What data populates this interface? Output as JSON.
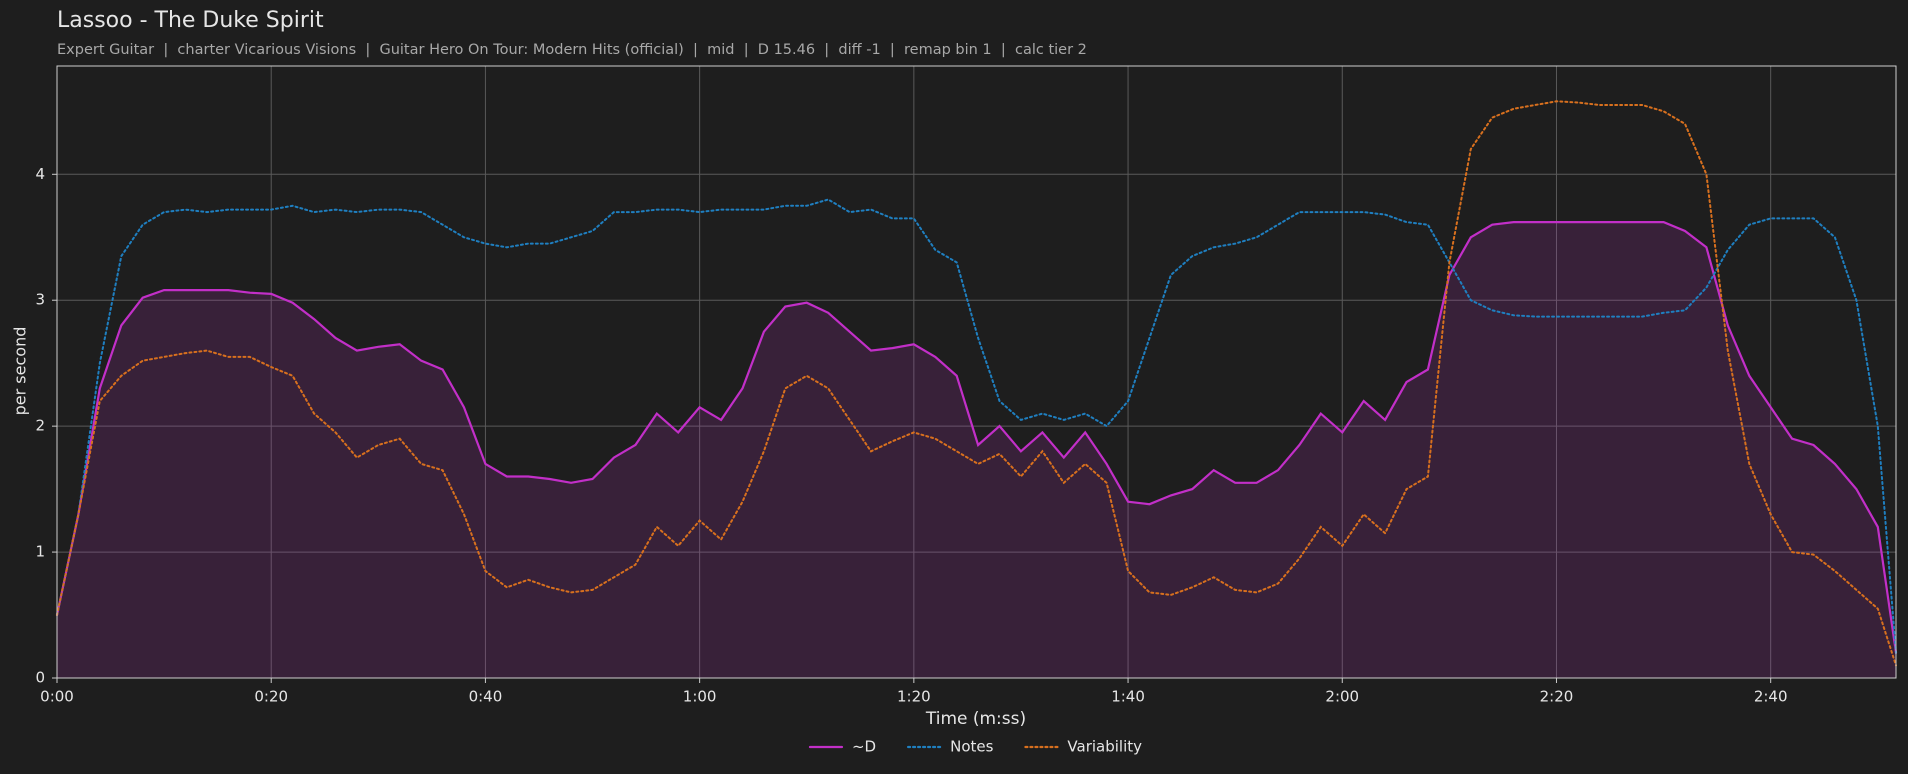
{
  "chart_data": {
    "type": "line",
    "title": "Lassoo - The Duke Spirit",
    "subtitle": "Expert Guitar  |  charter Vicarious Visions  |  Guitar Hero On Tour: Modern Hits (official)  |  mid  |  D 15.46  |  diff -1  |  remap bin 1  |  calc tier 2",
    "xlabel": "Time (m:ss)",
    "ylabel": "per second",
    "x": [
      0,
      2,
      4,
      6,
      8,
      10,
      12,
      14,
      16,
      18,
      20,
      22,
      24,
      26,
      28,
      30,
      32,
      34,
      36,
      38,
      40,
      42,
      44,
      46,
      48,
      50,
      52,
      54,
      56,
      58,
      60,
      62,
      64,
      66,
      68,
      70,
      72,
      74,
      76,
      78,
      80,
      82,
      84,
      86,
      88,
      90,
      92,
      94,
      96,
      98,
      100,
      102,
      104,
      106,
      108,
      110,
      112,
      114,
      116,
      118,
      120,
      122,
      124,
      126,
      128,
      130,
      132,
      134,
      136,
      138,
      140,
      142,
      144,
      146,
      148,
      150,
      152,
      154,
      156,
      158,
      160,
      162,
      164,
      166,
      168,
      170,
      171.7
    ],
    "series": [
      {
        "name": "~D",
        "color": "#c22fc8",
        "style": "solid",
        "fill": true,
        "values": [
          0.5,
          1.3,
          2.3,
          2.8,
          3.02,
          3.08,
          3.08,
          3.08,
          3.08,
          3.06,
          3.05,
          2.98,
          2.85,
          2.7,
          2.6,
          2.63,
          2.65,
          2.52,
          2.45,
          2.15,
          1.7,
          1.6,
          1.6,
          1.58,
          1.55,
          1.58,
          1.75,
          1.85,
          2.1,
          1.95,
          2.15,
          2.05,
          2.3,
          2.75,
          2.95,
          2.98,
          2.9,
          2.75,
          2.6,
          2.62,
          2.65,
          2.55,
          2.4,
          1.85,
          2.0,
          1.8,
          1.95,
          1.75,
          1.95,
          1.7,
          1.4,
          1.38,
          1.45,
          1.5,
          1.65,
          1.55,
          1.55,
          1.65,
          1.85,
          2.1,
          1.95,
          2.2,
          2.05,
          2.35,
          2.45,
          3.2,
          3.5,
          3.6,
          3.62,
          3.62,
          3.62,
          3.62,
          3.62,
          3.62,
          3.62,
          3.62,
          3.55,
          3.42,
          2.8,
          2.4,
          2.15,
          1.9,
          1.85,
          1.7,
          1.5,
          1.2,
          0.2
        ]
      },
      {
        "name": "Notes",
        "color": "#1f7fc0",
        "style": "dotted",
        "fill": false,
        "values": [
          0.5,
          1.3,
          2.5,
          3.35,
          3.6,
          3.7,
          3.72,
          3.7,
          3.72,
          3.72,
          3.72,
          3.75,
          3.7,
          3.72,
          3.7,
          3.72,
          3.72,
          3.7,
          3.6,
          3.5,
          3.45,
          3.42,
          3.45,
          3.45,
          3.5,
          3.55,
          3.7,
          3.7,
          3.72,
          3.72,
          3.7,
          3.72,
          3.72,
          3.72,
          3.75,
          3.75,
          3.8,
          3.7,
          3.72,
          3.65,
          3.65,
          3.4,
          3.3,
          2.7,
          2.2,
          2.05,
          2.1,
          2.05,
          2.1,
          2.0,
          2.2,
          2.7,
          3.2,
          3.35,
          3.42,
          3.45,
          3.5,
          3.6,
          3.7,
          3.7,
          3.7,
          3.7,
          3.68,
          3.62,
          3.6,
          3.3,
          3.0,
          2.92,
          2.88,
          2.87,
          2.87,
          2.87,
          2.87,
          2.87,
          2.87,
          2.9,
          2.92,
          3.1,
          3.4,
          3.6,
          3.65,
          3.65,
          3.65,
          3.5,
          3.0,
          2.0,
          0.2
        ]
      },
      {
        "name": "Variability",
        "color": "#d8701e",
        "style": "dotted",
        "fill": false,
        "values": [
          0.5,
          1.3,
          2.2,
          2.4,
          2.52,
          2.55,
          2.58,
          2.6,
          2.55,
          2.55,
          2.47,
          2.4,
          2.1,
          1.95,
          1.75,
          1.85,
          1.9,
          1.7,
          1.65,
          1.3,
          0.85,
          0.72,
          0.78,
          0.72,
          0.68,
          0.7,
          0.8,
          0.9,
          1.2,
          1.05,
          1.25,
          1.1,
          1.4,
          1.8,
          2.3,
          2.4,
          2.3,
          2.05,
          1.8,
          1.88,
          1.95,
          1.9,
          1.8,
          1.7,
          1.78,
          1.6,
          1.8,
          1.55,
          1.7,
          1.55,
          0.85,
          0.68,
          0.66,
          0.72,
          0.8,
          0.7,
          0.68,
          0.75,
          0.95,
          1.2,
          1.05,
          1.3,
          1.15,
          1.5,
          1.6,
          3.3,
          4.2,
          4.45,
          4.52,
          4.55,
          4.58,
          4.57,
          4.55,
          4.55,
          4.55,
          4.5,
          4.4,
          4.0,
          2.6,
          1.7,
          1.3,
          1.0,
          0.98,
          0.85,
          0.7,
          0.55,
          0.1
        ]
      }
    ],
    "xlim": [
      0,
      171.7
    ],
    "ylim": [
      0,
      4.86
    ],
    "xticks": [
      {
        "value": 0,
        "label": "0:00"
      },
      {
        "value": 20,
        "label": "0:20"
      },
      {
        "value": 40,
        "label": "0:40"
      },
      {
        "value": 60,
        "label": "1:00"
      },
      {
        "value": 80,
        "label": "1:20"
      },
      {
        "value": 100,
        "label": "1:40"
      },
      {
        "value": 120,
        "label": "2:00"
      },
      {
        "value": 140,
        "label": "2:20"
      },
      {
        "value": 160,
        "label": "2:40"
      }
    ],
    "yticks": [
      0,
      1,
      2,
      3,
      4
    ],
    "grid": true,
    "legend": "bottom"
  }
}
